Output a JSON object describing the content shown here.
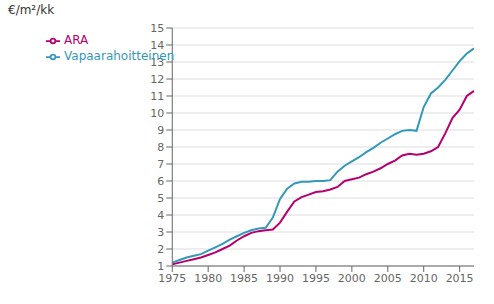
{
  "chart_data": {
    "type": "line",
    "ylabel": "€/m²/kk",
    "x": [
      1975,
      1976,
      1977,
      1978,
      1979,
      1980,
      1981,
      1982,
      1983,
      1984,
      1985,
      1986,
      1987,
      1988,
      1989,
      1990,
      1991,
      1992,
      1993,
      1994,
      1995,
      1996,
      1997,
      1998,
      1999,
      2000,
      2001,
      2002,
      2003,
      2004,
      2005,
      2006,
      2007,
      2008,
      2009,
      2010,
      2011,
      2012,
      2013,
      2014,
      2015,
      2016,
      2017
    ],
    "series": [
      {
        "name": "ARA",
        "color": "#b5006e",
        "values": [
          1.1,
          1.2,
          1.3,
          1.4,
          1.5,
          1.65,
          1.8,
          2.0,
          2.2,
          2.5,
          2.75,
          2.95,
          3.05,
          3.1,
          3.15,
          3.55,
          4.2,
          4.8,
          5.05,
          5.2,
          5.35,
          5.4,
          5.5,
          5.65,
          6.0,
          6.1,
          6.2,
          6.4,
          6.55,
          6.75,
          7.0,
          7.2,
          7.5,
          7.6,
          7.55,
          7.6,
          7.75,
          8.0,
          8.8,
          9.7,
          10.2,
          11.0,
          11.3
        ]
      },
      {
        "name": "Vapaarahoitteinen",
        "color": "#3399bb",
        "values": [
          1.2,
          1.35,
          1.5,
          1.6,
          1.7,
          1.9,
          2.1,
          2.3,
          2.55,
          2.75,
          2.95,
          3.1,
          3.2,
          3.25,
          3.85,
          4.95,
          5.55,
          5.85,
          5.95,
          5.95,
          6.0,
          6.0,
          6.05,
          6.55,
          6.9,
          7.15,
          7.4,
          7.7,
          7.95,
          8.25,
          8.5,
          8.75,
          8.95,
          9.0,
          8.95,
          10.35,
          11.15,
          11.5,
          11.95,
          12.5,
          13.05,
          13.5,
          13.8
        ]
      }
    ],
    "xlim": [
      1975,
      2017
    ],
    "ylim": [
      1,
      15
    ],
    "xticks": [
      1975,
      1980,
      1985,
      1990,
      1995,
      2000,
      2005,
      2010,
      2015
    ],
    "yticks": [
      1,
      2,
      3,
      4,
      5,
      6,
      7,
      8,
      9,
      10,
      11,
      12,
      13,
      14,
      15
    ],
    "grid": true,
    "legend": "upper left"
  }
}
